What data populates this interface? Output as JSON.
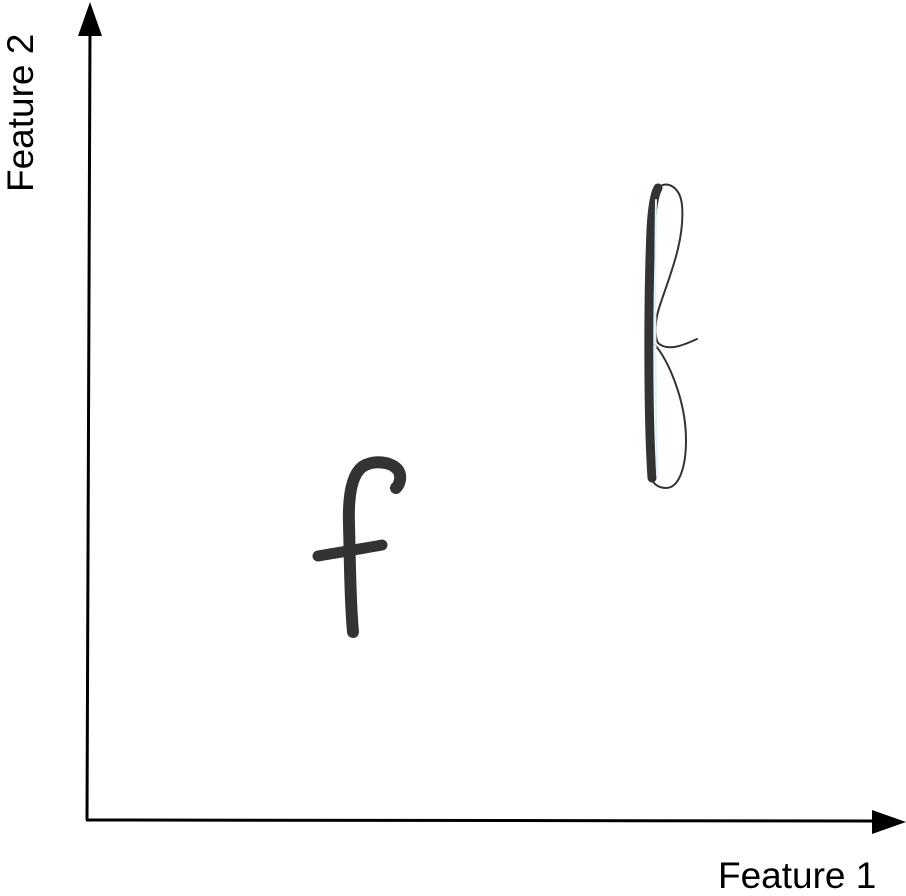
{
  "axes": {
    "x_label": "Feature 1",
    "y_label": "Feature 2"
  },
  "glyphs": {
    "bold_f": "bold-script-letter-f",
    "thin_f": "thin-calligraphic-letter-f"
  },
  "colors": {
    "axis": "#000000",
    "glyph_ink": "#333333",
    "background": "#ffffff"
  }
}
